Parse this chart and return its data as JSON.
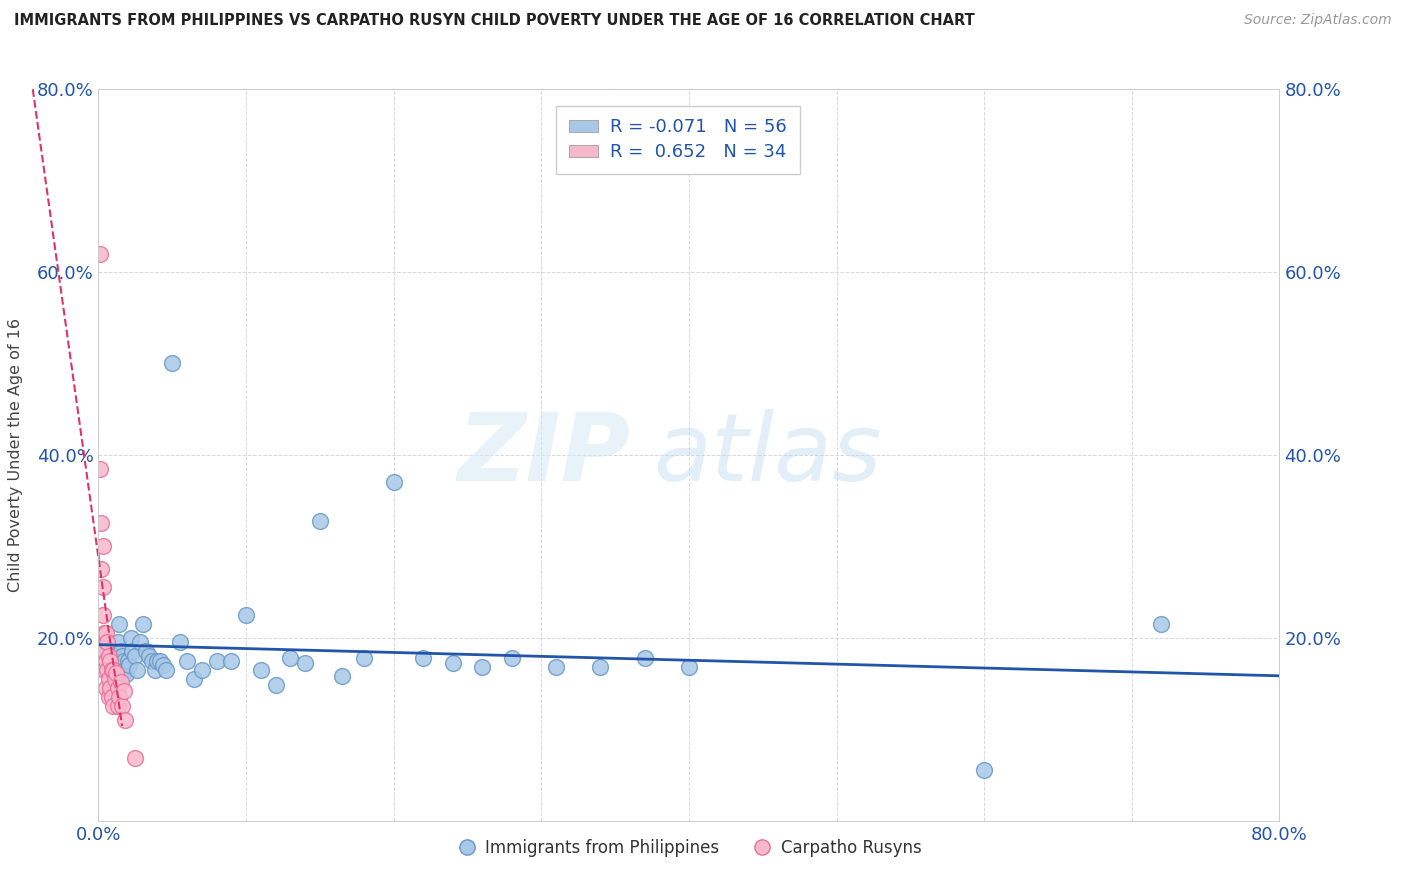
{
  "title": "IMMIGRANTS FROM PHILIPPINES VS CARPATHO RUSYN CHILD POVERTY UNDER THE AGE OF 16 CORRELATION CHART",
  "source": "Source: ZipAtlas.com",
  "ylabel": "Child Poverty Under the Age of 16",
  "xlim": [
    0.0,
    0.8
  ],
  "ylim": [
    0.0,
    0.8
  ],
  "blue_R": -0.071,
  "blue_N": 56,
  "pink_R": 0.652,
  "pink_N": 34,
  "blue_color": "#a8c8e8",
  "blue_edge": "#6898c8",
  "pink_color": "#f8b8cc",
  "pink_edge": "#e87098",
  "blue_line_color": "#2255aa",
  "pink_line_color": "#dd3366",
  "legend_label_blue": "Immigrants from Philippines",
  "legend_label_pink": "Carpatho Rusyns",
  "blue_scatter_x": [
    0.003,
    0.005,
    0.007,
    0.009,
    0.01,
    0.011,
    0.012,
    0.013,
    0.014,
    0.015,
    0.016,
    0.017,
    0.018,
    0.019,
    0.02,
    0.021,
    0.022,
    0.023,
    0.025,
    0.026,
    0.028,
    0.03,
    0.032,
    0.034,
    0.036,
    0.038,
    0.04,
    0.042,
    0.044,
    0.046,
    0.05,
    0.055,
    0.06,
    0.065,
    0.07,
    0.08,
    0.09,
    0.1,
    0.11,
    0.12,
    0.13,
    0.14,
    0.15,
    0.165,
    0.18,
    0.2,
    0.22,
    0.24,
    0.26,
    0.28,
    0.31,
    0.34,
    0.37,
    0.4,
    0.6,
    0.72
  ],
  "blue_scatter_y": [
    0.185,
    0.195,
    0.175,
    0.185,
    0.16,
    0.18,
    0.175,
    0.195,
    0.215,
    0.185,
    0.18,
    0.175,
    0.165,
    0.16,
    0.175,
    0.17,
    0.2,
    0.185,
    0.18,
    0.165,
    0.195,
    0.215,
    0.185,
    0.18,
    0.175,
    0.165,
    0.175,
    0.175,
    0.17,
    0.165,
    0.5,
    0.195,
    0.175,
    0.155,
    0.165,
    0.175,
    0.175,
    0.225,
    0.165,
    0.148,
    0.178,
    0.172,
    0.328,
    0.158,
    0.178,
    0.37,
    0.178,
    0.172,
    0.168,
    0.178,
    0.168,
    0.168,
    0.178,
    0.168,
    0.055,
    0.215
  ],
  "pink_scatter_x": [
    0.001,
    0.001,
    0.002,
    0.002,
    0.003,
    0.003,
    0.003,
    0.004,
    0.004,
    0.004,
    0.005,
    0.005,
    0.005,
    0.006,
    0.006,
    0.007,
    0.007,
    0.007,
    0.008,
    0.008,
    0.009,
    0.009,
    0.01,
    0.01,
    0.011,
    0.012,
    0.013,
    0.013,
    0.014,
    0.015,
    0.016,
    0.017,
    0.018,
    0.025
  ],
  "pink_scatter_y": [
    0.62,
    0.385,
    0.325,
    0.275,
    0.3,
    0.255,
    0.225,
    0.205,
    0.185,
    0.165,
    0.205,
    0.175,
    0.145,
    0.195,
    0.165,
    0.18,
    0.155,
    0.135,
    0.175,
    0.145,
    0.165,
    0.135,
    0.165,
    0.125,
    0.155,
    0.162,
    0.145,
    0.125,
    0.135,
    0.152,
    0.125,
    0.142,
    0.11,
    0.068
  ]
}
